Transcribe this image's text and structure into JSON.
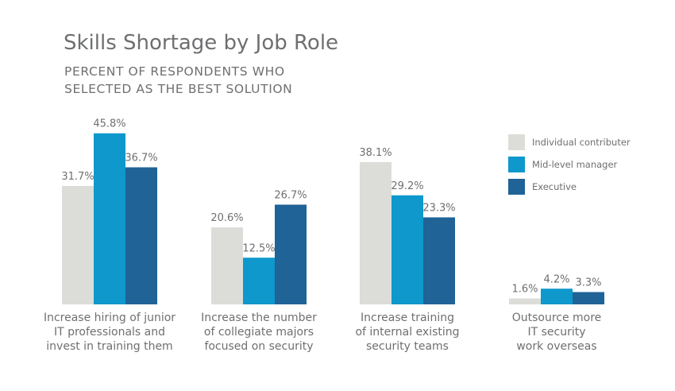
{
  "chart_data": {
    "type": "bar",
    "title": "Skills Shortage by Job Role",
    "subtitle_lines": [
      "PERCENT OF RESPONDENTS WHO",
      "SELECTED AS THE BEST SOLUTION"
    ],
    "categories": [
      [
        "Increase hiring of junior",
        "IT professionals and",
        "invest in training them"
      ],
      [
        "Increase the number",
        "of collegiate majors",
        "focused on security"
      ],
      [
        "Increase training",
        "of internal existing",
        "security teams"
      ],
      [
        "Outsource more",
        "IT security",
        "work overseas"
      ]
    ],
    "series": [
      {
        "name": "Individual contributer",
        "color": "#dcddd8",
        "values": [
          31.7,
          20.6,
          38.1,
          1.6
        ],
        "labels": [
          "31.7%",
          "20.6%",
          "38.1%",
          "1.6%"
        ]
      },
      {
        "name": "Mid-level manager",
        "color": "#0e98cc",
        "values": [
          45.8,
          12.5,
          29.2,
          4.2
        ],
        "labels": [
          "45.8%",
          "12.5%",
          "29.2%",
          "4.2%"
        ]
      },
      {
        "name": "Executive",
        "color": "#1f6397",
        "values": [
          36.7,
          26.7,
          23.3,
          3.3
        ],
        "labels": [
          "36.7%",
          "26.7%",
          "23.3%",
          "3.3%"
        ]
      }
    ],
    "grid": false,
    "legend_position": "right"
  }
}
